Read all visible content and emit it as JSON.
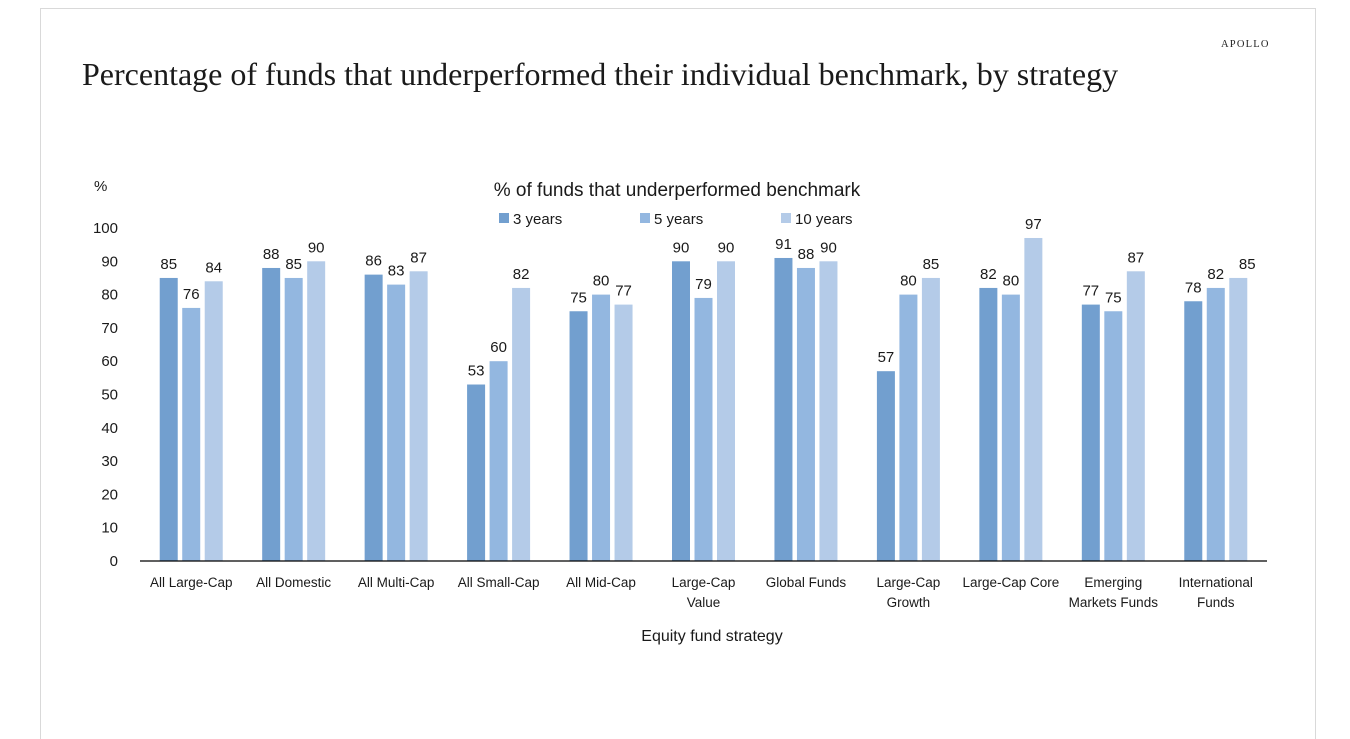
{
  "brand": "APOLLO",
  "page_title": "Percentage of funds that underperformed their individual benchmark, by strategy",
  "colors": {
    "3 years": "#729fcf",
    "5 years": "#93b7e0",
    "10 years": "#b4cbe8",
    "axis": "#000000"
  },
  "chart_data": {
    "type": "bar",
    "title": "% of funds that underperformed benchmark",
    "ylabel": "%",
    "xlabel": "Equity fund strategy",
    "ylim": [
      0,
      100
    ],
    "yticks": [
      "0",
      "10",
      "20",
      "30",
      "40",
      "50",
      "60",
      "70",
      "80",
      "90",
      "100"
    ],
    "grid": false,
    "legend_position": "top",
    "categories": [
      [
        "All Large-Cap"
      ],
      [
        "All Domestic"
      ],
      [
        "All Multi-Cap"
      ],
      [
        "All Small-Cap"
      ],
      [
        "All Mid-Cap"
      ],
      [
        "Large-Cap",
        "Value"
      ],
      [
        "Global Funds"
      ],
      [
        "Large-Cap",
        "Growth"
      ],
      [
        "Large-Cap Core"
      ],
      [
        "Emerging",
        "Markets Funds"
      ],
      [
        "International",
        "Funds"
      ]
    ],
    "series": [
      {
        "name": "3 years",
        "values": [
          85,
          88,
          86,
          53,
          75,
          90,
          91,
          57,
          82,
          77,
          78
        ]
      },
      {
        "name": "5 years",
        "values": [
          76,
          85,
          83,
          60,
          80,
          79,
          88,
          80,
          80,
          75,
          82
        ]
      },
      {
        "name": "10 years",
        "values": [
          84,
          90,
          87,
          82,
          77,
          90,
          90,
          85,
          97,
          87,
          85
        ]
      }
    ],
    "data_labels": [
      [
        "85",
        "88",
        "86",
        "53",
        "75",
        "90",
        "91",
        "57",
        "82",
        "77",
        "78"
      ],
      [
        "76",
        "85",
        "83",
        "60",
        "80",
        "79",
        "88",
        "80",
        "80",
        "75",
        "82"
      ],
      [
        "84",
        "90",
        "87",
        "82",
        "77",
        "90",
        "90",
        "85",
        "97",
        "87",
        ""
      ]
    ],
    "annotations": [
      "85"
    ]
  }
}
